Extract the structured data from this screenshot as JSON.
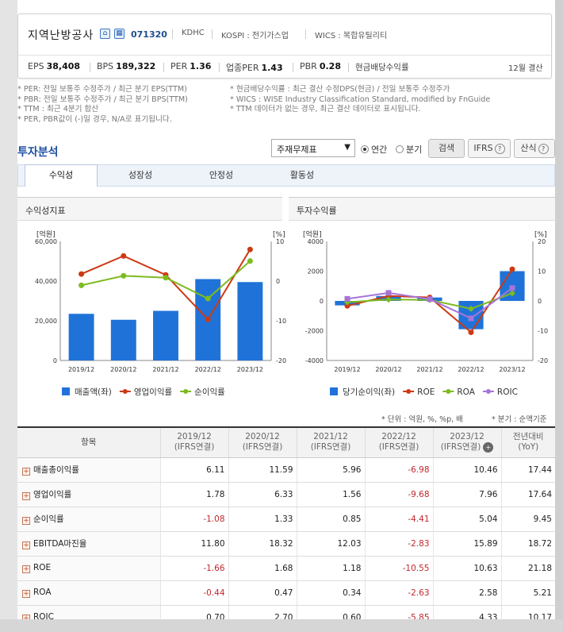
{
  "company": {
    "name": "지역난방공사",
    "code": "071320",
    "tags": [
      "KDHC",
      "KOSPI : 전기가스업",
      "WICS : 복합유틸리티"
    ]
  },
  "metrics": [
    {
      "label": "EPS",
      "value": "38,408"
    },
    {
      "label": "BPS",
      "value": "189,322"
    },
    {
      "label": "PER",
      "value": "1.36"
    },
    {
      "label": "업종PER",
      "value": "1.43"
    },
    {
      "label": "PBR",
      "value": "0.28"
    },
    {
      "label": "현금배당수익률",
      "value": ""
    }
  ],
  "settle": "12월 결산",
  "notes_left": [
    "* PER: 전일 보통주 수정주가 / 최근 분기 EPS(TTM)",
    "* PBR: 전일 보통주 수정주가 / 최근 분기 BPS(TTM)",
    "* TTM : 최근 4분기 합산",
    "* PER, PBR값이 (-)일 경우, N/A로 표기됩니다."
  ],
  "notes_right": [
    "* 현금배당수익률 : 최근 결산 수정DPS(현금) / 전일 보통주 수정주가",
    "* WICS : WISE Industry Classification Standard, modified by FnGuide",
    "* TTM 데이터가 없는 경우, 최근 결산 데이터로 표시됩니다."
  ],
  "section_title": "투자분석",
  "controls": {
    "select": "주재무제표",
    "radio_annual": "연간",
    "radio_quarter": "분기",
    "search": "검색",
    "ifrs": "IFRS",
    "calc": "산식"
  },
  "tabs": [
    "수익성",
    "성장성",
    "안정성",
    "활동성"
  ],
  "panel_left": "수익성지표",
  "panel_right": "투자수익률",
  "caption_unit": "* 단위 : 억원, %, %p, 배",
  "caption_quarter": "* 분기 : 순액기준",
  "table": {
    "head": [
      "항목",
      "2019/12\n(IFRS연결)",
      "2020/12\n(IFRS연결)",
      "2021/12\n(IFRS연결)",
      "2022/12\n(IFRS연결)",
      "2023/12\n(IFRS연결)",
      "전년대비\n(YoY)"
    ],
    "rows": [
      [
        "매출총이익률",
        "6.11",
        "11.59",
        "5.96",
        "-6.98",
        "10.46",
        "17.44"
      ],
      [
        "영업이익률",
        "1.78",
        "6.33",
        "1.56",
        "-9.68",
        "7.96",
        "17.64"
      ],
      [
        "순이익률",
        "-1.08",
        "1.33",
        "0.85",
        "-4.41",
        "5.04",
        "9.45"
      ],
      [
        "EBITDA마진율",
        "11.80",
        "18.32",
        "12.03",
        "-2.83",
        "15.89",
        "18.72"
      ],
      [
        "ROE",
        "-1.66",
        "1.68",
        "1.18",
        "-10.55",
        "10.63",
        "21.18"
      ],
      [
        "ROA",
        "-0.44",
        "0.47",
        "0.34",
        "-2.63",
        "2.58",
        "5.21"
      ],
      [
        "ROIC",
        "0.70",
        "2.70",
        "0.60",
        "-5.85",
        "4.33",
        "10.17"
      ]
    ]
  },
  "chart_data": [
    {
      "type": "bar",
      "title": "수익성지표",
      "categories": [
        "2019/12",
        "2020/12",
        "2021/12",
        "2022/12",
        "2023/12"
      ],
      "left_axis": {
        "label": "[억원]",
        "ylim": [
          0,
          60000
        ],
        "ticks": [
          "60,000",
          "40,000",
          "20,000",
          "0"
        ]
      },
      "right_axis": {
        "label": "[%]",
        "ylim": [
          -20,
          10
        ],
        "ticks": [
          "10",
          "0",
          "-10",
          "-20"
        ]
      },
      "series": [
        {
          "name": "매출액(좌)",
          "type": "bar",
          "axis": "left",
          "values": [
            23500,
            20500,
            25000,
            41000,
            39500
          ],
          "color": "#1f73d8"
        },
        {
          "name": "영업이익률",
          "type": "line",
          "axis": "right",
          "values": [
            1.78,
            6.33,
            1.56,
            -9.68,
            7.96
          ],
          "color": "#cc3a15"
        },
        {
          "name": "순이익률",
          "type": "line",
          "axis": "right",
          "values": [
            -1.08,
            1.33,
            0.85,
            -4.41,
            5.04
          ],
          "color": "#7dbb1f"
        }
      ]
    },
    {
      "type": "bar",
      "title": "투자수익률",
      "categories": [
        "2019/12",
        "2020/12",
        "2021/12",
        "2022/12",
        "2023/12"
      ],
      "left_axis": {
        "label": "[억원]",
        "ylim": [
          -4000,
          4000
        ],
        "ticks": [
          "4000",
          "2000",
          "0",
          "-2000",
          "-4000"
        ]
      },
      "right_axis": {
        "label": "[%]",
        "ylim": [
          -20,
          20
        ],
        "ticks": [
          "20",
          "10",
          "0",
          "-10",
          "-20"
        ]
      },
      "series": [
        {
          "name": "당기순이익(좌)",
          "type": "bar",
          "axis": "left",
          "values": [
            -300,
            330,
            230,
            -1900,
            2000
          ],
          "color": "#1f73d8"
        },
        {
          "name": "ROE",
          "type": "line",
          "axis": "right",
          "values": [
            -1.66,
            1.68,
            1.18,
            -10.55,
            10.63
          ],
          "color": "#cc3a15"
        },
        {
          "name": "ROA",
          "type": "line",
          "axis": "right",
          "values": [
            -0.44,
            0.47,
            0.34,
            -2.63,
            2.58
          ],
          "color": "#7dbb1f"
        },
        {
          "name": "ROIC",
          "type": "line",
          "axis": "right",
          "values": [
            0.7,
            2.7,
            0.6,
            -5.85,
            4.33
          ],
          "color": "#a774d8"
        }
      ]
    }
  ]
}
